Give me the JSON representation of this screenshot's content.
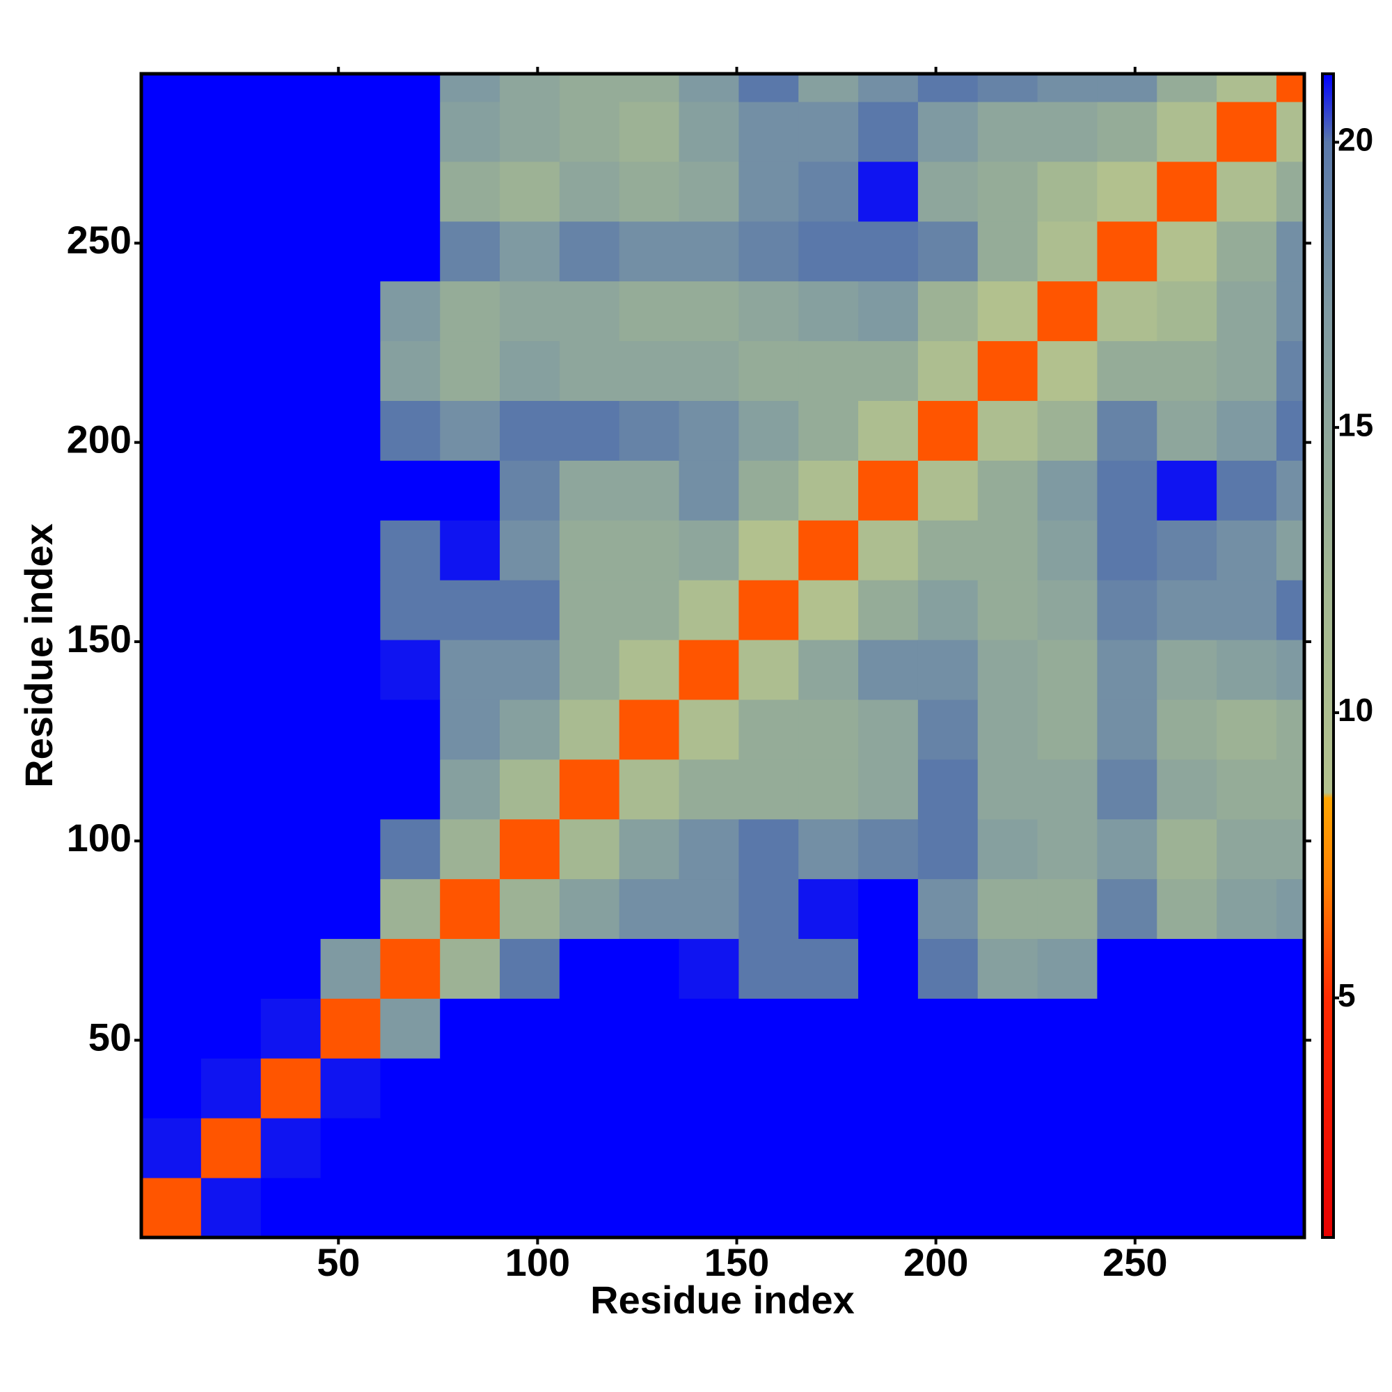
{
  "chart_data": {
    "type": "heatmap",
    "xlabel": "Residue index",
    "ylabel": "Residue index",
    "xbins": [
      0.5,
      15.5,
      30.5,
      45.5,
      60.5,
      75.5,
      90.5,
      105.5,
      120.5,
      135.5,
      150.5,
      165.5,
      180.5,
      195.5,
      210.5,
      225.5,
      240.5,
      255.5,
      270.5,
      285.5,
      292.5
    ],
    "ybins": [
      0.5,
      15.5,
      30.5,
      45.5,
      60.5,
      75.5,
      90.5,
      105.5,
      120.5,
      135.5,
      150.5,
      165.5,
      180.5,
      195.5,
      210.5,
      225.5,
      240.5,
      255.5,
      270.5,
      285.5,
      292.5
    ],
    "xlim": [
      0.5,
      292.5
    ],
    "ylim": [
      0.5,
      292.5
    ],
    "xticks": [
      50,
      100,
      150,
      200,
      250
    ],
    "yticks": [
      50,
      100,
      150,
      200,
      250
    ],
    "values": [
      [
        6,
        21,
        25,
        25,
        25,
        25,
        25,
        25,
        25,
        25,
        25,
        25,
        25,
        25,
        25,
        25,
        25,
        25,
        25,
        25
      ],
      [
        21,
        6,
        21,
        25,
        25,
        25,
        25,
        25,
        25,
        25,
        25,
        25,
        25,
        25,
        25,
        25,
        25,
        25,
        25,
        25
      ],
      [
        25,
        21,
        6,
        21,
        25,
        25,
        25,
        25,
        25,
        25,
        25,
        25,
        25,
        25,
        25,
        25,
        25,
        25,
        25,
        25
      ],
      [
        25,
        25,
        21,
        6,
        17,
        25,
        25,
        25,
        25,
        25,
        25,
        25,
        25,
        25,
        25,
        25,
        25,
        25,
        25,
        25
      ],
      [
        25,
        25,
        25,
        17,
        6,
        13,
        20,
        24,
        24,
        21,
        20,
        20,
        23,
        20,
        16,
        17,
        22,
        22,
        22,
        22
      ],
      [
        25,
        25,
        25,
        25,
        13,
        6,
        13,
        16,
        18,
        18,
        20,
        21,
        23,
        18,
        14,
        14,
        19,
        14,
        16,
        17
      ],
      [
        25,
        25,
        25,
        25,
        20,
        13,
        6,
        12,
        16,
        18,
        20,
        18,
        19,
        20,
        16,
        15,
        17,
        13,
        15,
        15
      ],
      [
        25,
        25,
        25,
        25,
        24,
        16,
        12,
        6,
        11,
        14,
        14,
        14,
        15,
        20,
        15,
        15,
        19,
        15,
        14,
        14
      ],
      [
        25,
        25,
        25,
        25,
        24,
        18,
        16,
        11,
        6,
        10,
        14,
        14,
        15,
        19,
        15,
        14,
        18,
        14,
        13,
        14
      ],
      [
        25,
        25,
        25,
        25,
        21,
        18,
        18,
        14,
        10,
        6,
        10,
        15,
        18,
        18,
        15,
        14,
        18,
        15,
        16,
        17
      ],
      [
        25,
        25,
        25,
        25,
        20,
        20,
        20,
        14,
        14,
        10,
        6,
        9,
        14,
        16,
        14,
        15,
        19,
        18,
        18,
        20
      ],
      [
        25,
        25,
        25,
        25,
        20,
        21,
        18,
        14,
        14,
        15,
        9,
        6,
        10,
        14,
        14,
        16,
        20,
        19,
        18,
        16
      ],
      [
        25,
        25,
        25,
        25,
        23,
        23,
        19,
        15,
        15,
        18,
        14,
        10,
        6,
        10,
        14,
        17,
        20,
        21,
        20,
        18
      ],
      [
        25,
        25,
        25,
        25,
        20,
        18,
        20,
        20,
        19,
        18,
        16,
        14,
        10,
        6,
        10,
        13,
        19,
        15,
        17,
        20
      ],
      [
        25,
        25,
        25,
        25,
        16,
        14,
        16,
        15,
        15,
        15,
        14,
        14,
        14,
        10,
        6,
        9,
        14,
        14,
        15,
        19
      ],
      [
        25,
        25,
        25,
        25,
        17,
        14,
        15,
        15,
        14,
        14,
        15,
        16,
        17,
        13,
        9,
        6,
        10,
        12,
        15,
        18
      ],
      [
        25,
        25,
        25,
        25,
        22,
        19,
        17,
        19,
        18,
        18,
        19,
        20,
        20,
        19,
        14,
        10,
        6,
        9,
        14,
        18
      ],
      [
        25,
        25,
        25,
        25,
        22,
        14,
        13,
        15,
        14,
        15,
        18,
        19,
        21,
        15,
        14,
        12,
        9,
        6,
        10,
        14
      ],
      [
        25,
        25,
        25,
        25,
        22,
        16,
        15,
        14,
        13,
        16,
        18,
        18,
        20,
        17,
        15,
        15,
        14,
        10,
        6,
        10
      ],
      [
        25,
        25,
        25,
        25,
        22,
        17,
        15,
        14,
        14,
        17,
        20,
        16,
        18,
        20,
        19,
        18,
        18,
        14,
        10,
        6
      ]
    ],
    "clim": [
      0.8,
      21.2
    ],
    "cticks": [
      5,
      10,
      15,
      20
    ],
    "colorscale": [
      [
        0.8,
        "#e80000"
      ],
      [
        5,
        "#ff2a00"
      ],
      [
        7,
        "#ff8000"
      ],
      [
        8.5,
        "#ffa500"
      ],
      [
        8.6,
        "#b4c28e"
      ],
      [
        12,
        "#a4b892"
      ],
      [
        17,
        "#7f9aa2"
      ],
      [
        20,
        "#5a78aa"
      ],
      [
        21.2,
        "#0000ff"
      ]
    ]
  }
}
